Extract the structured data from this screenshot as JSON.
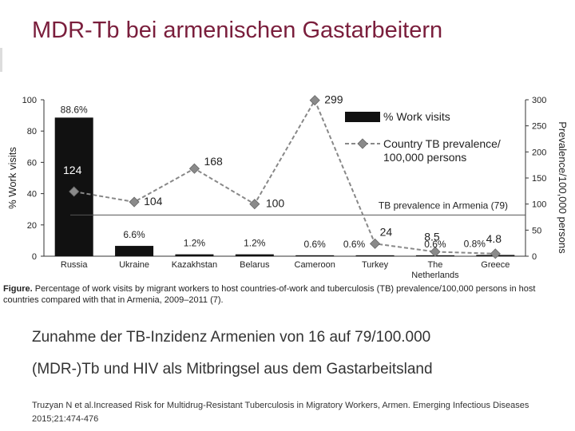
{
  "slide": {
    "title": "MDR-Tb bei armenischen Gastarbeitern",
    "bullets": [
      "Zunahme der TB-Inzidenz Armenien von 16 auf 79/100.000",
      "(MDR-)Tb und HIV als Mitbringsel aus dem Gastarbeitsland"
    ],
    "reference": "Truzyan N et al.Increased Risk for Multidrug-Resistant Tuberculosis in Migratory Workers, Armen. Emerging Infectious Diseases 2015;21:474-476"
  },
  "caption": {
    "label": "Figure.",
    "text": " Percentage of work visits by migrant workers to host countries-of-work and tuberculosis (TB) prevalence/100,000 persons in host countries compared with that in Armenia, 2009–2011 (7)."
  },
  "chart_data": {
    "type": "bar",
    "categories": [
      "Russia",
      "Ukraine",
      "Kazakhstan",
      "Belarus",
      "Cameroon",
      "Turkey",
      "The Netherlands",
      "Greece"
    ],
    "category_lines": [
      [
        "Russia"
      ],
      [
        "Ukraine"
      ],
      [
        "Kazakhstan"
      ],
      [
        "Belarus"
      ],
      [
        "Cameroon"
      ],
      [
        "Turkey"
      ],
      [
        "The",
        "Netherlands"
      ],
      [
        "Greece"
      ]
    ],
    "series": [
      {
        "name": "% Work visits",
        "type": "bar",
        "axis": "left",
        "values": [
          88.6,
          6.6,
          1.2,
          1.2,
          0.6,
          0.6,
          0.6,
          0.8
        ],
        "labels": [
          "88.6%",
          "6.6%",
          "1.2%",
          "1.2%",
          "0.6%",
          "0.6%",
          "0.6%",
          "0.8%"
        ],
        "color": "#111111"
      },
      {
        "name": "Country TB prevalence/ 100,000 persons",
        "name_lines": [
          "Country TB prevalence/",
          "100,000 persons"
        ],
        "type": "line",
        "axis": "right",
        "values": [
          124,
          104,
          168,
          100,
          299,
          24,
          8.5,
          4.8
        ],
        "labels": [
          "124",
          "104",
          "168",
          "100",
          "299",
          "24",
          "8.5",
          "4.8"
        ],
        "color": "#888888",
        "marker_color": "#8a8a8a"
      }
    ],
    "reference_line": {
      "label": "TB prevalence in Armenia (79)",
      "value": 79,
      "axis": "right"
    },
    "ylabel": "% Work visits",
    "y2label": "Prevalence/100,000 persons",
    "ylim": [
      0,
      100
    ],
    "y2lim": [
      0,
      300
    ],
    "yticks": [
      0,
      20,
      40,
      60,
      80,
      100
    ],
    "y2ticks": [
      0,
      50,
      100,
      150,
      200,
      250,
      300
    ],
    "grid": false,
    "legend_position": "top-right"
  }
}
